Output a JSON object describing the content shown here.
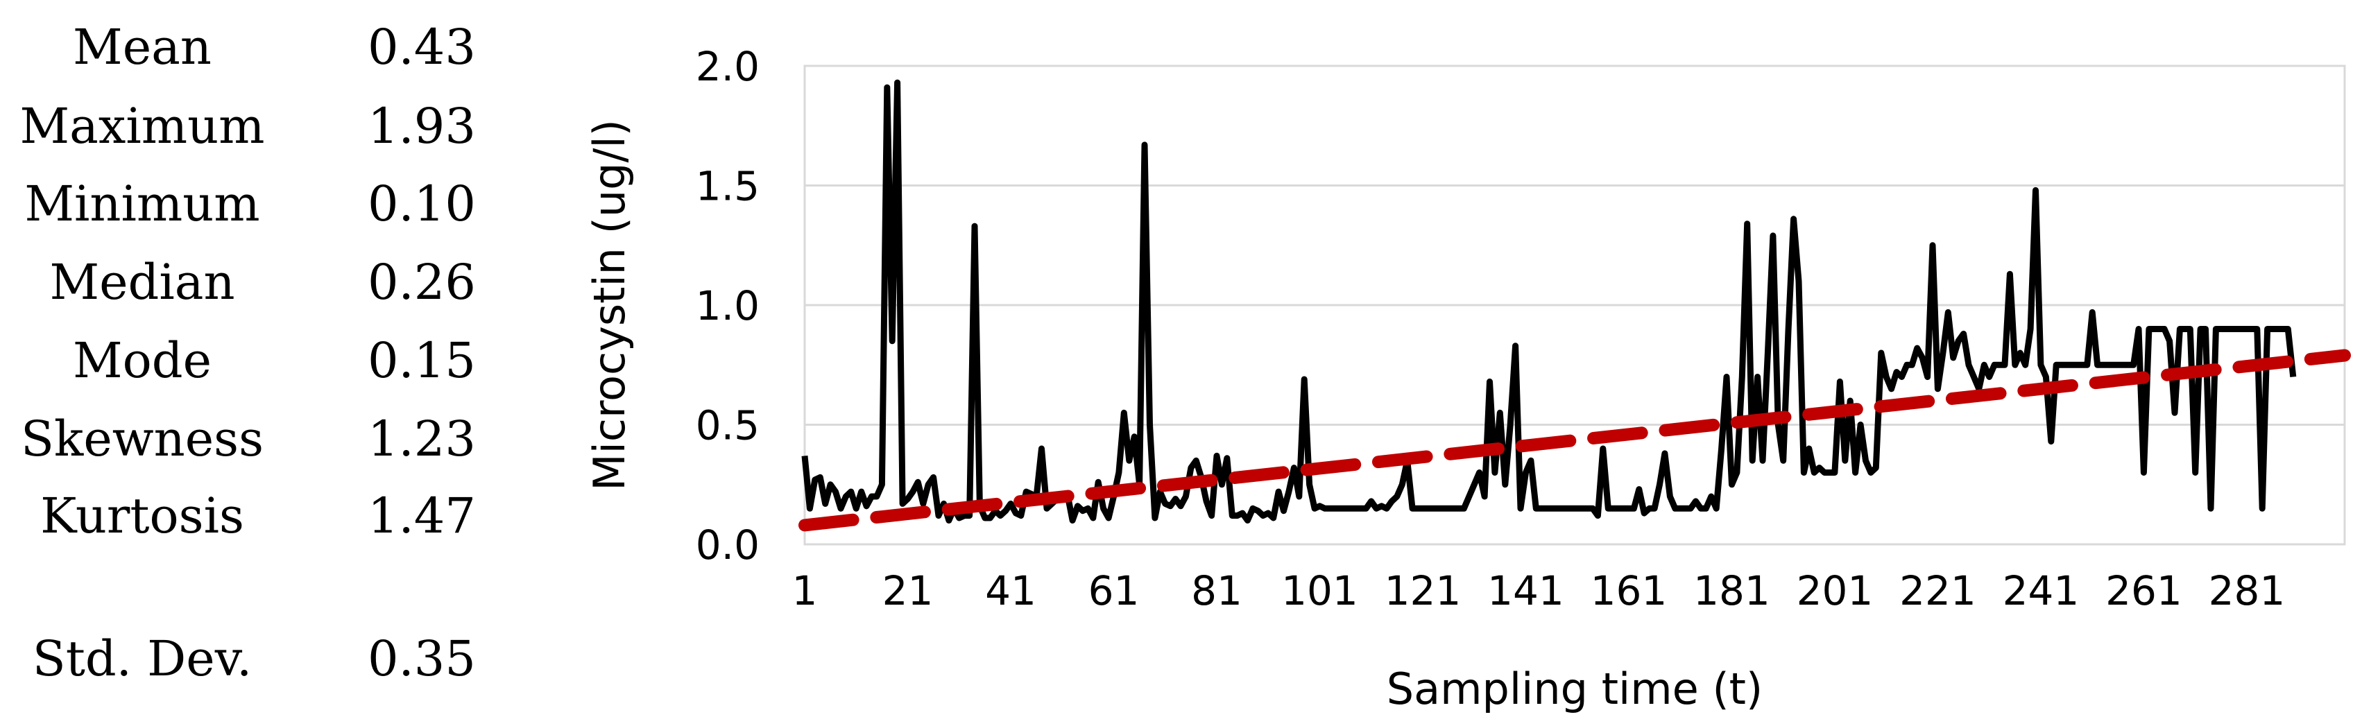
{
  "stats": [
    {
      "label": "Mean",
      "value": "0.43"
    },
    {
      "label": "Maximum",
      "value": "1.93"
    },
    {
      "label": "Minimum",
      "value": "0.10"
    },
    {
      "label": "Median",
      "value": "0.26"
    },
    {
      "label": "Mode",
      "value": "0.15"
    },
    {
      "label": "Skewness",
      "value": "1.23"
    },
    {
      "label": "Kurtosis",
      "value": "1.47"
    },
    {
      "label": "Std. Dev.",
      "value": "0.35"
    }
  ],
  "chart_data": {
    "type": "line",
    "xlabel": "Sampling time (t)",
    "ylabel": "Microcystin (ug/l)",
    "xlim": [
      1,
      300
    ],
    "ylim": [
      0,
      2.0
    ],
    "x_ticks": [
      "1",
      "21",
      "41",
      "61",
      "81",
      "101",
      "121",
      "141",
      "161",
      "181",
      "201",
      "221",
      "241",
      "261",
      "281"
    ],
    "y_ticks": [
      "0.0",
      "0.5",
      "1.0",
      "1.5",
      "2.0"
    ],
    "grid": "horizontal",
    "colors": {
      "series": "#000000",
      "trend": "#c00000",
      "grid": "#d9d9d9"
    },
    "series": [
      {
        "style": "solid",
        "points": [
          [
            1,
            0.37
          ],
          [
            2,
            0.15
          ],
          [
            3,
            0.27
          ],
          [
            4,
            0.28
          ],
          [
            5,
            0.17
          ],
          [
            6,
            0.25
          ],
          [
            7,
            0.22
          ],
          [
            8,
            0.15
          ],
          [
            9,
            0.2
          ],
          [
            10,
            0.22
          ],
          [
            11,
            0.15
          ],
          [
            12,
            0.22
          ],
          [
            13,
            0.16
          ],
          [
            14,
            0.2
          ],
          [
            15,
            0.2
          ],
          [
            16,
            0.25
          ],
          [
            17,
            1.91
          ],
          [
            18,
            0.85
          ],
          [
            19,
            1.93
          ],
          [
            20,
            0.17
          ],
          [
            21,
            0.19
          ],
          [
            22,
            0.22
          ],
          [
            23,
            0.26
          ],
          [
            24,
            0.17
          ],
          [
            25,
            0.25
          ],
          [
            26,
            0.28
          ],
          [
            27,
            0.12
          ],
          [
            28,
            0.17
          ],
          [
            29,
            0.1
          ],
          [
            30,
            0.15
          ],
          [
            31,
            0.11
          ],
          [
            32,
            0.12
          ],
          [
            33,
            0.12
          ],
          [
            34,
            1.33
          ],
          [
            35,
            0.16
          ],
          [
            36,
            0.11
          ],
          [
            37,
            0.11
          ],
          [
            38,
            0.14
          ],
          [
            39,
            0.12
          ],
          [
            40,
            0.14
          ],
          [
            41,
            0.17
          ],
          [
            42,
            0.13
          ],
          [
            43,
            0.12
          ],
          [
            44,
            0.22
          ],
          [
            45,
            0.21
          ],
          [
            46,
            0.2
          ],
          [
            47,
            0.4
          ],
          [
            48,
            0.15
          ],
          [
            49,
            0.17
          ],
          [
            50,
            0.19
          ],
          [
            51,
            0.2
          ],
          [
            52,
            0.21
          ],
          [
            53,
            0.1
          ],
          [
            54,
            0.16
          ],
          [
            55,
            0.14
          ],
          [
            56,
            0.15
          ],
          [
            57,
            0.11
          ],
          [
            58,
            0.26
          ],
          [
            59,
            0.15
          ],
          [
            60,
            0.11
          ],
          [
            61,
            0.2
          ],
          [
            62,
            0.3
          ],
          [
            63,
            0.55
          ],
          [
            64,
            0.35
          ],
          [
            65,
            0.45
          ],
          [
            66,
            0.25
          ],
          [
            67,
            1.67
          ],
          [
            68,
            0.5
          ],
          [
            69,
            0.11
          ],
          [
            70,
            0.22
          ],
          [
            71,
            0.17
          ],
          [
            72,
            0.16
          ],
          [
            73,
            0.19
          ],
          [
            74,
            0.16
          ],
          [
            75,
            0.2
          ],
          [
            76,
            0.32
          ],
          [
            77,
            0.35
          ],
          [
            78,
            0.28
          ],
          [
            79,
            0.18
          ],
          [
            80,
            0.12
          ],
          [
            81,
            0.37
          ],
          [
            82,
            0.25
          ],
          [
            83,
            0.36
          ],
          [
            84,
            0.12
          ],
          [
            85,
            0.12
          ],
          [
            86,
            0.13
          ],
          [
            87,
            0.1
          ],
          [
            88,
            0.15
          ],
          [
            89,
            0.14
          ],
          [
            90,
            0.12
          ],
          [
            91,
            0.13
          ],
          [
            92,
            0.11
          ],
          [
            93,
            0.22
          ],
          [
            94,
            0.14
          ],
          [
            95,
            0.22
          ],
          [
            96,
            0.32
          ],
          [
            97,
            0.2
          ],
          [
            98,
            0.69
          ],
          [
            99,
            0.25
          ],
          [
            100,
            0.15
          ],
          [
            101,
            0.16
          ],
          [
            102,
            0.15
          ],
          [
            103,
            0.15
          ],
          [
            104,
            0.15
          ],
          [
            105,
            0.15
          ],
          [
            106,
            0.15
          ],
          [
            107,
            0.15
          ],
          [
            108,
            0.15
          ],
          [
            109,
            0.15
          ],
          [
            110,
            0.15
          ],
          [
            111,
            0.18
          ],
          [
            112,
            0.15
          ],
          [
            113,
            0.16
          ],
          [
            114,
            0.15
          ],
          [
            115,
            0.18
          ],
          [
            116,
            0.2
          ],
          [
            117,
            0.25
          ],
          [
            118,
            0.35
          ],
          [
            119,
            0.15
          ],
          [
            120,
            0.15
          ],
          [
            121,
            0.15
          ],
          [
            122,
            0.15
          ],
          [
            123,
            0.15
          ],
          [
            124,
            0.15
          ],
          [
            125,
            0.15
          ],
          [
            126,
            0.15
          ],
          [
            127,
            0.15
          ],
          [
            128,
            0.15
          ],
          [
            129,
            0.15
          ],
          [
            130,
            0.2
          ],
          [
            131,
            0.25
          ],
          [
            132,
            0.3
          ],
          [
            133,
            0.2
          ],
          [
            134,
            0.68
          ],
          [
            135,
            0.3
          ],
          [
            136,
            0.55
          ],
          [
            137,
            0.25
          ],
          [
            138,
            0.5
          ],
          [
            139,
            0.83
          ],
          [
            140,
            0.15
          ],
          [
            141,
            0.3
          ],
          [
            142,
            0.35
          ],
          [
            143,
            0.15
          ],
          [
            144,
            0.15
          ],
          [
            145,
            0.15
          ],
          [
            146,
            0.15
          ],
          [
            147,
            0.15
          ],
          [
            148,
            0.15
          ],
          [
            149,
            0.15
          ],
          [
            150,
            0.15
          ],
          [
            151,
            0.15
          ],
          [
            152,
            0.15
          ],
          [
            153,
            0.15
          ],
          [
            154,
            0.15
          ],
          [
            155,
            0.12
          ],
          [
            156,
            0.4
          ],
          [
            157,
            0.15
          ],
          [
            158,
            0.15
          ],
          [
            159,
            0.15
          ],
          [
            160,
            0.15
          ],
          [
            161,
            0.15
          ],
          [
            162,
            0.15
          ],
          [
            163,
            0.23
          ],
          [
            164,
            0.13
          ],
          [
            165,
            0.15
          ],
          [
            166,
            0.15
          ],
          [
            167,
            0.25
          ],
          [
            168,
            0.38
          ],
          [
            169,
            0.2
          ],
          [
            170,
            0.15
          ],
          [
            171,
            0.15
          ],
          [
            172,
            0.15
          ],
          [
            173,
            0.15
          ],
          [
            174,
            0.18
          ],
          [
            175,
            0.15
          ],
          [
            176,
            0.15
          ],
          [
            177,
            0.2
          ],
          [
            178,
            0.15
          ],
          [
            179,
            0.4
          ],
          [
            180,
            0.7
          ],
          [
            181,
            0.25
          ],
          [
            182,
            0.3
          ],
          [
            183,
            0.7
          ],
          [
            184,
            1.34
          ],
          [
            185,
            0.35
          ],
          [
            186,
            0.7
          ],
          [
            187,
            0.35
          ],
          [
            188,
            0.8
          ],
          [
            189,
            1.29
          ],
          [
            190,
            0.5
          ],
          [
            191,
            0.35
          ],
          [
            192,
            0.9
          ],
          [
            193,
            1.36
          ],
          [
            194,
            1.1
          ],
          [
            195,
            0.3
          ],
          [
            196,
            0.4
          ],
          [
            197,
            0.3
          ],
          [
            198,
            0.32
          ],
          [
            199,
            0.3
          ],
          [
            200,
            0.3
          ],
          [
            201,
            0.3
          ],
          [
            202,
            0.68
          ],
          [
            203,
            0.35
          ],
          [
            204,
            0.6
          ],
          [
            205,
            0.3
          ],
          [
            206,
            0.5
          ],
          [
            207,
            0.35
          ],
          [
            208,
            0.3
          ],
          [
            209,
            0.32
          ],
          [
            210,
            0.8
          ],
          [
            211,
            0.7
          ],
          [
            212,
            0.65
          ],
          [
            213,
            0.72
          ],
          [
            214,
            0.7
          ],
          [
            215,
            0.75
          ],
          [
            216,
            0.75
          ],
          [
            217,
            0.82
          ],
          [
            218,
            0.78
          ],
          [
            219,
            0.7
          ],
          [
            220,
            1.25
          ],
          [
            221,
            0.65
          ],
          [
            222,
            0.8
          ],
          [
            223,
            0.97
          ],
          [
            224,
            0.78
          ],
          [
            225,
            0.85
          ],
          [
            226,
            0.88
          ],
          [
            227,
            0.75
          ],
          [
            228,
            0.7
          ],
          [
            229,
            0.65
          ],
          [
            230,
            0.75
          ],
          [
            231,
            0.7
          ],
          [
            232,
            0.75
          ],
          [
            233,
            0.75
          ],
          [
            234,
            0.75
          ],
          [
            235,
            1.13
          ],
          [
            236,
            0.75
          ],
          [
            237,
            0.8
          ],
          [
            238,
            0.75
          ],
          [
            239,
            0.9
          ],
          [
            240,
            1.48
          ],
          [
            241,
            0.75
          ],
          [
            242,
            0.7
          ],
          [
            243,
            0.43
          ],
          [
            244,
            0.75
          ],
          [
            245,
            0.75
          ],
          [
            246,
            0.75
          ],
          [
            247,
            0.75
          ],
          [
            248,
            0.75
          ],
          [
            249,
            0.75
          ],
          [
            250,
            0.75
          ],
          [
            251,
            0.97
          ],
          [
            252,
            0.75
          ],
          [
            253,
            0.75
          ],
          [
            254,
            0.75
          ],
          [
            255,
            0.75
          ],
          [
            256,
            0.75
          ],
          [
            257,
            0.75
          ],
          [
            258,
            0.75
          ],
          [
            259,
            0.75
          ],
          [
            260,
            0.9
          ],
          [
            261,
            0.3
          ],
          [
            262,
            0.9
          ],
          [
            263,
            0.9
          ],
          [
            264,
            0.9
          ],
          [
            265,
            0.9
          ],
          [
            266,
            0.85
          ],
          [
            267,
            0.55
          ],
          [
            268,
            0.9
          ],
          [
            269,
            0.9
          ],
          [
            270,
            0.9
          ],
          [
            271,
            0.3
          ],
          [
            272,
            0.9
          ],
          [
            273,
            0.9
          ],
          [
            274,
            0.15
          ],
          [
            275,
            0.9
          ],
          [
            276,
            0.9
          ],
          [
            277,
            0.9
          ],
          [
            278,
            0.9
          ],
          [
            279,
            0.9
          ],
          [
            280,
            0.9
          ],
          [
            281,
            0.9
          ],
          [
            282,
            0.9
          ],
          [
            283,
            0.9
          ],
          [
            284,
            0.15
          ],
          [
            285,
            0.9
          ],
          [
            286,
            0.9
          ],
          [
            287,
            0.9
          ],
          [
            288,
            0.9
          ],
          [
            289,
            0.9
          ],
          [
            290,
            0.7
          ]
        ]
      },
      {
        "style": "dashed",
        "points": [
          [
            1,
            0.08
          ],
          [
            300,
            0.79
          ]
        ]
      }
    ]
  }
}
